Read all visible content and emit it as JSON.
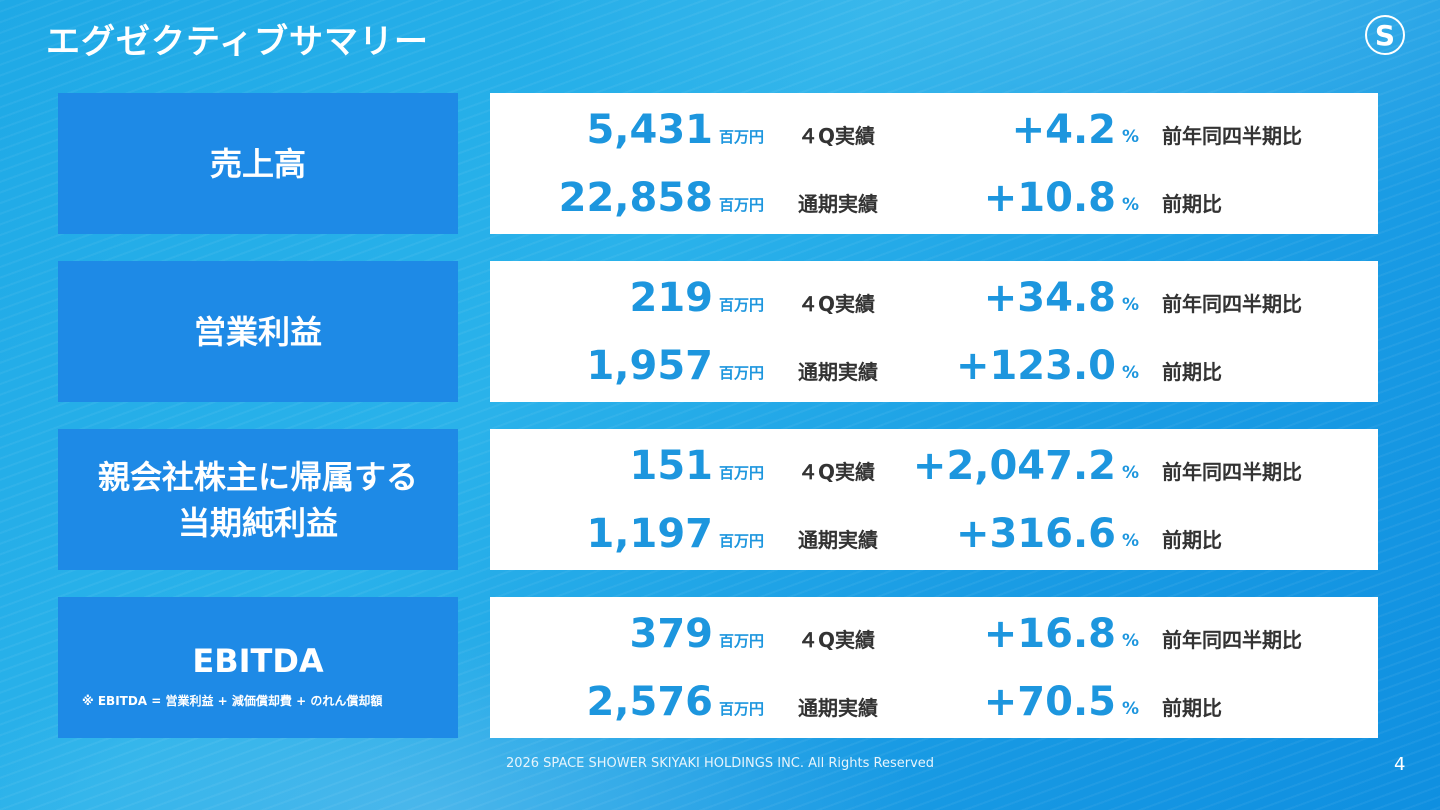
{
  "header": {
    "title": "エグゼクティブサマリー",
    "logo_letter": "S"
  },
  "rows": [
    {
      "label": "売上高",
      "note": "",
      "lines": [
        {
          "value": "5,431",
          "unit": "百万円",
          "period": "４Q実績",
          "change": "+4.2",
          "pct": "%",
          "compare": "前年同四半期比"
        },
        {
          "value": "22,858",
          "unit": "百万円",
          "period": "通期実績",
          "change": "+10.8",
          "pct": "%",
          "compare": "前期比"
        }
      ]
    },
    {
      "label": "営業利益",
      "note": "",
      "lines": [
        {
          "value": "219",
          "unit": "百万円",
          "period": "４Q実績",
          "change": "+34.8",
          "pct": "%",
          "compare": "前年同四半期比"
        },
        {
          "value": "1,957",
          "unit": "百万円",
          "period": "通期実績",
          "change": "+123.0",
          "pct": "%",
          "compare": "前期比"
        }
      ]
    },
    {
      "label": "親会社株主に帰属する\n当期純利益",
      "note": "",
      "lines": [
        {
          "value": "151",
          "unit": "百万円",
          "period": "４Q実績",
          "change": "+2,047.2",
          "pct": "%",
          "compare": "前年同四半期比"
        },
        {
          "value": "1,197",
          "unit": "百万円",
          "period": "通期実績",
          "change": "+316.6",
          "pct": "%",
          "compare": "前期比"
        }
      ]
    },
    {
      "label": "EBITDA",
      "note": "※ EBITDA = 営業利益 + 減価償却費 + のれん償却額",
      "lines": [
        {
          "value": "379",
          "unit": "百万円",
          "period": "４Q実績",
          "change": "+16.8",
          "pct": "%",
          "compare": "前年同四半期比"
        },
        {
          "value": "2,576",
          "unit": "百万円",
          "period": "通期実績",
          "change": "+70.5",
          "pct": "%",
          "compare": "前期比"
        }
      ]
    }
  ],
  "footer": {
    "copyright": "2026 SPACE SHOWER SKIYAKI HOLDINGS INC. All Rights Reserved",
    "page_number": "4"
  },
  "colors": {
    "accent": "#1d96de",
    "label_bg": "#1e8ae6",
    "text_dark": "#333333"
  }
}
